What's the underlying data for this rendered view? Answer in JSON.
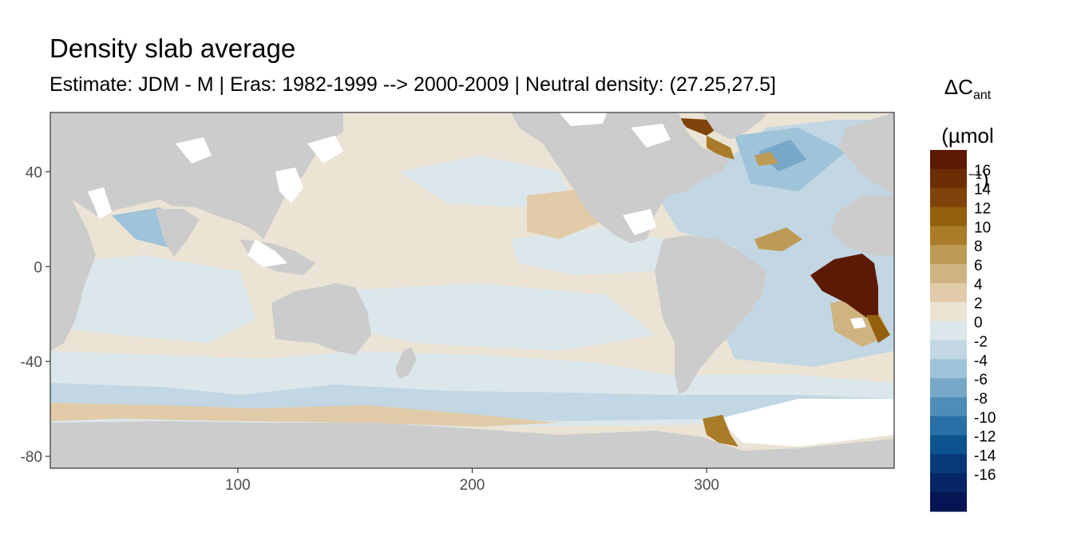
{
  "header": {
    "title": "Density slab average",
    "subtitle": "Estimate: JDM - M | Eras: 1982-1999 --> 2000-2009 | Neutral density: (27.25,27.5]"
  },
  "legend": {
    "title_main": "ΔC",
    "title_sub": "ant",
    "unit_prefix": "(µmol kg",
    "unit_sup": "−1",
    "unit_suffix": ")",
    "labels": [
      "16",
      "14",
      "12",
      "10",
      "8",
      "6",
      "4",
      "2",
      "0",
      "-2",
      "-4",
      "-6",
      "-8",
      "-10",
      "-12",
      "-14",
      "-16"
    ],
    "colors": [
      "#5c1a04",
      "#6d2d07",
      "#7f430b",
      "#93600f",
      "#a97c29",
      "#bd9a55",
      "#cfb482",
      "#e1cba8",
      "#ebe4d5",
      "#dce7ec",
      "#c2d7e3",
      "#9fc3d8",
      "#77a8c8",
      "#4f8cb8",
      "#2a6fa5",
      "#0d5390",
      "#083a7a",
      "#062665",
      "#051553"
    ]
  },
  "axes": {
    "x_ticks": [
      100,
      200,
      300
    ],
    "y_ticks": [
      40,
      0,
      -40,
      -80
    ],
    "x_range": [
      20,
      380
    ],
    "y_range": [
      -85,
      65
    ],
    "x_labels": [
      "100",
      "200",
      "300"
    ],
    "y_labels": [
      "40",
      "0",
      "-40",
      "-80"
    ]
  },
  "colors": {
    "land": "#cccccc",
    "frame": "#333333"
  }
}
